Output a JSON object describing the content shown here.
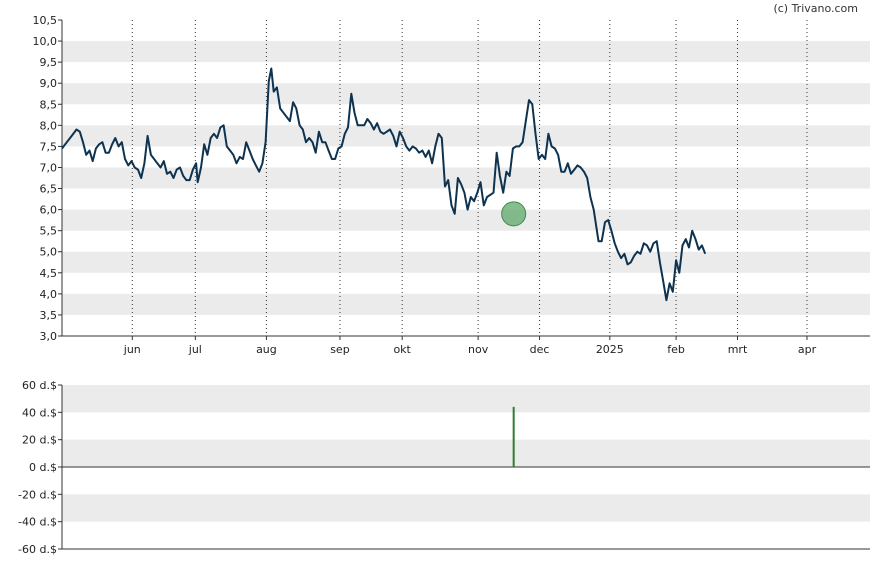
{
  "credit": "(c) Trivano.com",
  "colors": {
    "price_line": "#0d3350",
    "band": "#ebebeb",
    "volume_bar": "#2e7d32",
    "marker_fill": "#5fa86a",
    "marker_stroke": "#3d8a4a"
  },
  "chart_data": [
    {
      "type": "line",
      "title": "",
      "ylim": [
        3.0,
        10.5
      ],
      "y_ticks": [
        "3,0",
        "3,5",
        "4,0",
        "4,5",
        "5,0",
        "5,5",
        "6,0",
        "6,5",
        "7,0",
        "7,5",
        "8,0",
        "8,5",
        "9,0",
        "9,5",
        "10,0",
        "10,5"
      ],
      "x_ticks": [
        {
          "label": "jun",
          "t": 0.087
        },
        {
          "label": "jul",
          "t": 0.165
        },
        {
          "label": "aug",
          "t": 0.253
        },
        {
          "label": "sep",
          "t": 0.344
        },
        {
          "label": "okt",
          "t": 0.421
        },
        {
          "label": "nov",
          "t": 0.515
        },
        {
          "label": "dec",
          "t": 0.591
        },
        {
          "label": "2025",
          "t": 0.678
        },
        {
          "label": "feb",
          "t": 0.76
        },
        {
          "label": "mrt",
          "t": 0.836
        },
        {
          "label": "apr",
          "t": 0.922
        }
      ],
      "grid": "alternating horizontal bands, dotted vertical lines at months",
      "marker": {
        "t": 0.559,
        "y": 5.9
      },
      "series": [
        {
          "values": [
            [
              0.0,
              7.45
            ],
            [
              0.006,
              7.6
            ],
            [
              0.012,
              7.75
            ],
            [
              0.018,
              7.9
            ],
            [
              0.022,
              7.85
            ],
            [
              0.026,
              7.6
            ],
            [
              0.03,
              7.3
            ],
            [
              0.034,
              7.4
            ],
            [
              0.038,
              7.15
            ],
            [
              0.042,
              7.45
            ],
            [
              0.046,
              7.55
            ],
            [
              0.05,
              7.6
            ],
            [
              0.054,
              7.35
            ],
            [
              0.058,
              7.35
            ],
            [
              0.062,
              7.55
            ],
            [
              0.066,
              7.7
            ],
            [
              0.07,
              7.5
            ],
            [
              0.074,
              7.6
            ],
            [
              0.078,
              7.2
            ],
            [
              0.082,
              7.05
            ],
            [
              0.086,
              7.15
            ],
            [
              0.09,
              7.0
            ],
            [
              0.094,
              6.95
            ],
            [
              0.098,
              6.75
            ],
            [
              0.102,
              7.1
            ],
            [
              0.106,
              7.75
            ],
            [
              0.11,
              7.3
            ],
            [
              0.114,
              7.2
            ],
            [
              0.118,
              7.1
            ],
            [
              0.122,
              7.0
            ],
            [
              0.126,
              7.15
            ],
            [
              0.13,
              6.85
            ],
            [
              0.134,
              6.9
            ],
            [
              0.138,
              6.75
            ],
            [
              0.142,
              6.95
            ],
            [
              0.146,
              7.0
            ],
            [
              0.15,
              6.8
            ],
            [
              0.154,
              6.7
            ],
            [
              0.158,
              6.7
            ],
            [
              0.162,
              6.95
            ],
            [
              0.166,
              7.1
            ],
            [
              0.168,
              6.65
            ],
            [
              0.172,
              7.0
            ],
            [
              0.176,
              7.55
            ],
            [
              0.18,
              7.3
            ],
            [
              0.184,
              7.7
            ],
            [
              0.188,
              7.8
            ],
            [
              0.192,
              7.7
            ],
            [
              0.196,
              7.95
            ],
            [
              0.2,
              8.0
            ],
            [
              0.204,
              7.5
            ],
            [
              0.208,
              7.4
            ],
            [
              0.212,
              7.3
            ],
            [
              0.216,
              7.1
            ],
            [
              0.22,
              7.25
            ],
            [
              0.224,
              7.2
            ],
            [
              0.228,
              7.6
            ],
            [
              0.232,
              7.4
            ],
            [
              0.236,
              7.2
            ],
            [
              0.24,
              7.05
            ],
            [
              0.244,
              6.9
            ],
            [
              0.248,
              7.1
            ],
            [
              0.252,
              7.6
            ],
            [
              0.256,
              9.05
            ],
            [
              0.259,
              9.35
            ],
            [
              0.262,
              8.8
            ],
            [
              0.266,
              8.9
            ],
            [
              0.27,
              8.4
            ],
            [
              0.274,
              8.3
            ],
            [
              0.278,
              8.2
            ],
            [
              0.282,
              8.1
            ],
            [
              0.286,
              8.55
            ],
            [
              0.29,
              8.4
            ],
            [
              0.294,
              8.0
            ],
            [
              0.298,
              7.9
            ],
            [
              0.302,
              7.6
            ],
            [
              0.306,
              7.7
            ],
            [
              0.31,
              7.6
            ],
            [
              0.314,
              7.35
            ],
            [
              0.318,
              7.85
            ],
            [
              0.322,
              7.6
            ],
            [
              0.326,
              7.6
            ],
            [
              0.33,
              7.4
            ],
            [
              0.334,
              7.2
            ],
            [
              0.338,
              7.2
            ],
            [
              0.342,
              7.45
            ],
            [
              0.346,
              7.5
            ],
            [
              0.35,
              7.8
            ],
            [
              0.354,
              7.95
            ],
            [
              0.358,
              8.75
            ],
            [
              0.362,
              8.3
            ],
            [
              0.366,
              8.0
            ],
            [
              0.37,
              8.0
            ],
            [
              0.374,
              8.0
            ],
            [
              0.378,
              8.15
            ],
            [
              0.382,
              8.05
            ],
            [
              0.386,
              7.9
            ],
            [
              0.39,
              8.05
            ],
            [
              0.394,
              7.85
            ],
            [
              0.398,
              7.8
            ],
            [
              0.402,
              7.85
            ],
            [
              0.406,
              7.9
            ],
            [
              0.41,
              7.75
            ],
            [
              0.414,
              7.5
            ],
            [
              0.418,
              7.85
            ],
            [
              0.422,
              7.7
            ],
            [
              0.426,
              7.5
            ],
            [
              0.43,
              7.4
            ],
            [
              0.434,
              7.5
            ],
            [
              0.438,
              7.45
            ],
            [
              0.442,
              7.35
            ],
            [
              0.446,
              7.4
            ],
            [
              0.45,
              7.25
            ],
            [
              0.454,
              7.4
            ],
            [
              0.458,
              7.1
            ],
            [
              0.462,
              7.5
            ],
            [
              0.466,
              7.8
            ],
            [
              0.47,
              7.7
            ],
            [
              0.474,
              6.55
            ],
            [
              0.478,
              6.7
            ],
            [
              0.482,
              6.1
            ],
            [
              0.486,
              5.9
            ],
            [
              0.49,
              6.75
            ],
            [
              0.494,
              6.6
            ],
            [
              0.498,
              6.4
            ],
            [
              0.502,
              6.0
            ],
            [
              0.506,
              6.3
            ],
            [
              0.51,
              6.2
            ],
            [
              0.514,
              6.4
            ],
            [
              0.518,
              6.65
            ],
            [
              0.522,
              6.1
            ],
            [
              0.526,
              6.3
            ],
            [
              0.53,
              6.35
            ],
            [
              0.534,
              6.4
            ],
            [
              0.538,
              7.35
            ],
            [
              0.542,
              6.8
            ],
            [
              0.546,
              6.4
            ],
            [
              0.55,
              6.9
            ],
            [
              0.554,
              6.8
            ],
            [
              0.558,
              7.45
            ],
            [
              0.562,
              7.5
            ],
            [
              0.566,
              7.5
            ],
            [
              0.57,
              7.6
            ],
            [
              0.574,
              8.1
            ],
            [
              0.578,
              8.6
            ],
            [
              0.582,
              8.5
            ],
            [
              0.586,
              7.8
            ],
            [
              0.59,
              7.2
            ],
            [
              0.594,
              7.3
            ],
            [
              0.598,
              7.2
            ],
            [
              0.602,
              7.8
            ],
            [
              0.606,
              7.5
            ],
            [
              0.61,
              7.45
            ],
            [
              0.614,
              7.3
            ],
            [
              0.618,
              6.9
            ],
            [
              0.622,
              6.9
            ],
            [
              0.626,
              7.1
            ],
            [
              0.63,
              6.85
            ],
            [
              0.634,
              6.95
            ],
            [
              0.638,
              7.05
            ],
            [
              0.642,
              7.0
            ],
            [
              0.646,
              6.9
            ],
            [
              0.65,
              6.75
            ],
            [
              0.654,
              6.3
            ],
            [
              0.658,
              6.0
            ],
            [
              0.662,
              5.5
            ],
            [
              0.664,
              5.25
            ],
            [
              0.668,
              5.25
            ],
            [
              0.672,
              5.7
            ],
            [
              0.676,
              5.75
            ],
            [
              0.68,
              5.5
            ],
            [
              0.684,
              5.2
            ],
            [
              0.688,
              5.0
            ],
            [
              0.692,
              4.85
            ],
            [
              0.696,
              4.95
            ],
            [
              0.7,
              4.7
            ],
            [
              0.704,
              4.75
            ],
            [
              0.708,
              4.9
            ],
            [
              0.712,
              5.0
            ],
            [
              0.716,
              4.95
            ],
            [
              0.72,
              5.2
            ],
            [
              0.724,
              5.15
            ],
            [
              0.728,
              5.0
            ],
            [
              0.732,
              5.2
            ],
            [
              0.736,
              5.25
            ],
            [
              0.74,
              4.75
            ],
            [
              0.744,
              4.3
            ],
            [
              0.748,
              3.85
            ],
            [
              0.752,
              4.25
            ],
            [
              0.756,
              4.05
            ],
            [
              0.76,
              4.8
            ],
            [
              0.764,
              4.5
            ],
            [
              0.768,
              5.15
            ],
            [
              0.772,
              5.3
            ],
            [
              0.776,
              5.1
            ],
            [
              0.78,
              5.5
            ],
            [
              0.784,
              5.3
            ],
            [
              0.788,
              5.05
            ],
            [
              0.792,
              5.15
            ],
            [
              0.796,
              4.95
            ]
          ]
        }
      ]
    },
    {
      "type": "bar",
      "title": "",
      "ylim": [
        -60,
        60
      ],
      "y_ticks": [
        "60 d.$",
        "40 d.$",
        "20 d.$",
        "0 d.$",
        "-20 d.$",
        "-40 d.$",
        "-60 d.$"
      ],
      "grid": "alternating horizontal bands",
      "series": [
        {
          "values": [
            [
              0.559,
              44
            ]
          ]
        }
      ]
    }
  ]
}
